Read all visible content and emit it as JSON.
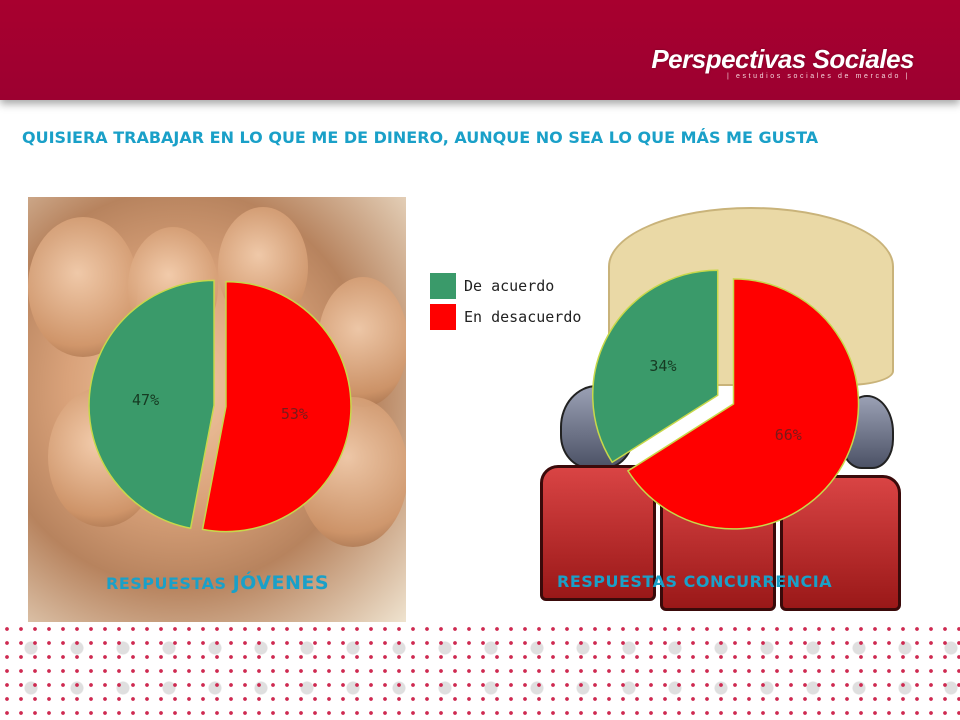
{
  "header": {
    "brand_name": "Perspectivas Sociales",
    "brand_tagline": "| estudios sociales de mercado |",
    "color": "#a8002f"
  },
  "title": "QUISIERA TRABAJAR EN LO QUE ME DE DINERO, AUNQUE NO SEA LO QUE MÁS ME GUSTA",
  "legend": [
    {
      "label": "De acuerdo",
      "color": "#3a9a6a"
    },
    {
      "label": "En desacuerdo",
      "color": "#ff0000"
    }
  ],
  "captions": {
    "left_prefix": "RESPUESTAS ",
    "left_main": "JÓVENES",
    "right": "RESPUESTAS CONCURRENCIA"
  },
  "chart_data": [
    {
      "type": "pie",
      "title": "RESPUESTAS JÓVENES",
      "categories": [
        "De acuerdo",
        "En desacuerdo"
      ],
      "values": [
        47,
        53
      ],
      "labels": [
        "47%",
        "53%"
      ],
      "colors": [
        "#3a9a6a",
        "#ff0000"
      ],
      "exploded": true
    },
    {
      "type": "pie",
      "title": "RESPUESTAS CONCURRENCIA",
      "categories": [
        "De acuerdo",
        "En desacuerdo"
      ],
      "values": [
        34,
        66
      ],
      "labels": [
        "34%",
        "66%"
      ],
      "colors": [
        "#3a9a6a",
        "#ff0000"
      ],
      "exploded": true
    }
  ]
}
